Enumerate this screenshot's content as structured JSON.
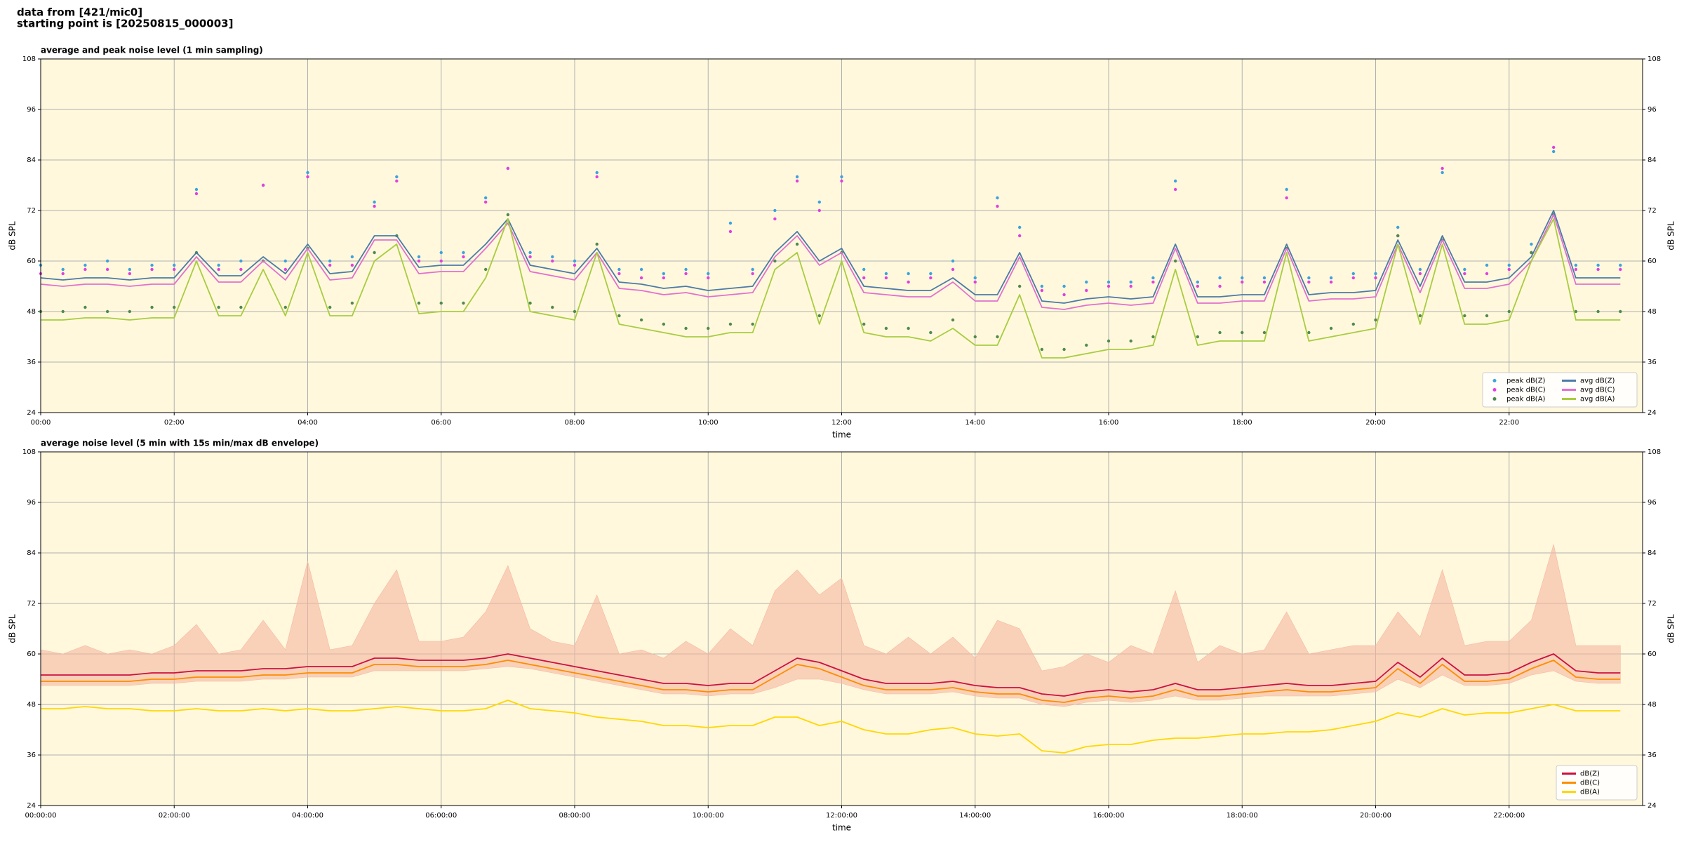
{
  "title": [
    "data from [421/mic0]",
    "starting point is [20250815_000003]"
  ],
  "chart_data": [
    {
      "type": "line",
      "title": "average and peak noise level (1 min sampling)",
      "xlabel": "time",
      "ylabel": "dB SPL",
      "facecolor": "#fff8dc",
      "grid": true,
      "right_axis_labels": true,
      "legend": "lower right",
      "legend_columns": 2,
      "xlim": [
        "00:00",
        "24:00"
      ],
      "xticks": [
        "00:00",
        "02:00",
        "04:00",
        "06:00",
        "08:00",
        "10:00",
        "12:00",
        "14:00",
        "16:00",
        "18:00",
        "20:00",
        "22:00"
      ],
      "ylim": [
        24,
        108
      ],
      "yticks": [
        24,
        36,
        48,
        60,
        72,
        84,
        96,
        108
      ],
      "x": [
        "00:00",
        "00:20",
        "00:40",
        "01:00",
        "01:20",
        "01:40",
        "02:00",
        "02:20",
        "02:40",
        "03:00",
        "03:20",
        "03:40",
        "04:00",
        "04:20",
        "04:40",
        "05:00",
        "05:20",
        "05:40",
        "06:00",
        "06:20",
        "06:40",
        "07:00",
        "07:20",
        "07:40",
        "08:00",
        "08:20",
        "08:40",
        "09:00",
        "09:20",
        "09:40",
        "10:00",
        "10:20",
        "10:40",
        "11:00",
        "11:20",
        "11:40",
        "12:00",
        "12:20",
        "12:40",
        "13:00",
        "13:20",
        "13:40",
        "14:00",
        "14:20",
        "14:40",
        "15:00",
        "15:20",
        "15:40",
        "16:00",
        "16:20",
        "16:40",
        "17:00",
        "17:20",
        "17:40",
        "18:00",
        "18:20",
        "18:40",
        "19:00",
        "19:20",
        "19:40",
        "20:00",
        "20:20",
        "20:40",
        "21:00",
        "21:20",
        "21:40",
        "22:00",
        "22:20",
        "22:40",
        "23:00",
        "23:20",
        "23:40"
      ],
      "series": [
        {
          "name": "peak dB(Z)",
          "type": "scatter",
          "color": "#3ba3e0",
          "values": [
            59,
            58,
            59,
            60,
            58,
            59,
            59,
            77,
            59,
            60,
            78,
            60,
            81,
            60,
            61,
            74,
            80,
            61,
            62,
            62,
            75,
            82,
            62,
            61,
            60,
            81,
            58,
            58,
            57,
            58,
            57,
            69,
            58,
            72,
            80,
            74,
            80,
            58,
            57,
            57,
            57,
            60,
            56,
            75,
            68,
            54,
            54,
            55,
            55,
            55,
            56,
            79,
            55,
            56,
            56,
            56,
            77,
            56,
            56,
            57,
            57,
            68,
            58,
            81,
            58,
            59,
            59,
            64,
            86,
            59,
            59,
            59
          ]
        },
        {
          "name": "peak dB(C)",
          "type": "scatter",
          "color": "#e040e0",
          "values": [
            57,
            57,
            58,
            58,
            57,
            58,
            58,
            76,
            58,
            58,
            78,
            58,
            80,
            59,
            59,
            73,
            79,
            60,
            60,
            61,
            74,
            82,
            61,
            60,
            59,
            80,
            57,
            56,
            56,
            57,
            56,
            67,
            57,
            70,
            79,
            72,
            79,
            56,
            56,
            55,
            56,
            58,
            55,
            73,
            66,
            53,
            52,
            53,
            54,
            54,
            55,
            77,
            54,
            54,
            55,
            55,
            75,
            55,
            55,
            56,
            56,
            66,
            57,
            82,
            57,
            57,
            58,
            62,
            87,
            58,
            58,
            58
          ]
        },
        {
          "name": "peak dB(A)",
          "type": "scatter",
          "color": "#4f8a4f",
          "values": [
            48,
            48,
            49,
            48,
            48,
            49,
            49,
            62,
            49,
            49,
            60,
            49,
            63,
            49,
            50,
            62,
            66,
            50,
            50,
            50,
            58,
            71,
            50,
            49,
            48,
            64,
            47,
            46,
            45,
            44,
            44,
            45,
            45,
            60,
            64,
            47,
            62,
            45,
            44,
            44,
            43,
            46,
            42,
            42,
            54,
            39,
            39,
            40,
            41,
            41,
            42,
            60,
            42,
            43,
            43,
            43,
            63,
            43,
            44,
            45,
            46,
            66,
            47,
            65,
            47,
            47,
            48,
            62,
            71,
            48,
            48,
            48
          ]
        },
        {
          "name": "avg dB(Z)",
          "type": "line",
          "color": "#4a7aa8",
          "values": [
            56,
            55.5,
            56,
            56,
            55.5,
            56,
            56,
            62,
            56.5,
            56.5,
            61,
            57,
            64,
            57,
            57.5,
            66,
            66,
            58.5,
            59,
            59,
            64,
            70,
            59,
            58,
            57,
            63,
            55,
            54.5,
            53.5,
            54,
            53,
            53.5,
            54,
            62,
            67,
            60,
            63,
            54,
            53.5,
            53,
            53,
            56,
            52,
            52,
            62,
            50.5,
            50,
            51,
            51.5,
            51,
            51.5,
            64,
            51.5,
            51.5,
            52,
            52,
            64,
            52,
            52.5,
            52.5,
            53,
            65,
            54,
            66,
            55,
            55,
            56,
            61,
            72,
            56,
            56,
            56
          ]
        },
        {
          "name": "avg dB(C)",
          "type": "line",
          "color": "#e070d0",
          "values": [
            54.5,
            54,
            54.5,
            54.5,
            54,
            54.5,
            54.5,
            61,
            55,
            55,
            60,
            55.5,
            63,
            55.5,
            56,
            65,
            65,
            57,
            57.5,
            57.5,
            63,
            69,
            57.5,
            56.5,
            55.5,
            62,
            53.5,
            53,
            52,
            52.5,
            51.5,
            52,
            52.5,
            61,
            66,
            59,
            62,
            52.5,
            52,
            51.5,
            51.5,
            55,
            50.5,
            50.5,
            61,
            49,
            48.5,
            49.5,
            50,
            49.5,
            50,
            63,
            50,
            50,
            50.5,
            50.5,
            63,
            50.5,
            51,
            51,
            51.5,
            64,
            52.5,
            65,
            53.5,
            53.5,
            54.5,
            60,
            71,
            54.5,
            54.5,
            54.5
          ]
        },
        {
          "name": "avg dB(A)",
          "type": "line",
          "color": "#a8cc40",
          "values": [
            46,
            46,
            46.5,
            46.5,
            46,
            46.5,
            46.5,
            60,
            47,
            47,
            58,
            47,
            62,
            47,
            47,
            60,
            64,
            47.5,
            48,
            48,
            56,
            70,
            48,
            47,
            46,
            62,
            45,
            44,
            43,
            42,
            42,
            43,
            43,
            58,
            62,
            45,
            60,
            43,
            42,
            42,
            41,
            44,
            40,
            40,
            52,
            37,
            37,
            38,
            39,
            39,
            40,
            58,
            40,
            41,
            41,
            41,
            62,
            41,
            42,
            43,
            44,
            64,
            45,
            64,
            45,
            45,
            46,
            60,
            70,
            46,
            46,
            46
          ]
        }
      ]
    },
    {
      "type": "line",
      "title": "average noise level (5 min with 15s min/max dB envelope)",
      "xlabel": "time",
      "ylabel": "dB SPL",
      "facecolor": "#fff8dc",
      "grid": true,
      "right_axis_labels": true,
      "legend": "lower right",
      "legend_columns": 1,
      "xlim": [
        "00:00:00",
        "24:00:00"
      ],
      "xticks": [
        "00:00:00",
        "02:00:00",
        "04:00:00",
        "06:00:00",
        "08:00:00",
        "10:00:00",
        "12:00:00",
        "14:00:00",
        "16:00:00",
        "18:00:00",
        "20:00:00",
        "22:00:00"
      ],
      "ylim": [
        24,
        108
      ],
      "yticks": [
        24,
        36,
        48,
        60,
        72,
        84,
        96,
        108
      ],
      "x": [
        "00:00:00",
        "00:20:00",
        "00:40:00",
        "01:00:00",
        "01:20:00",
        "01:40:00",
        "02:00:00",
        "02:20:00",
        "02:40:00",
        "03:00:00",
        "03:20:00",
        "03:40:00",
        "04:00:00",
        "04:20:00",
        "04:40:00",
        "05:00:00",
        "05:20:00",
        "05:40:00",
        "06:00:00",
        "06:20:00",
        "06:40:00",
        "07:00:00",
        "07:20:00",
        "07:40:00",
        "08:00:00",
        "08:20:00",
        "08:40:00",
        "09:00:00",
        "09:20:00",
        "09:40:00",
        "10:00:00",
        "10:20:00",
        "10:40:00",
        "11:00:00",
        "11:20:00",
        "11:40:00",
        "12:00:00",
        "12:20:00",
        "12:40:00",
        "13:00:00",
        "13:20:00",
        "13:40:00",
        "14:00:00",
        "14:20:00",
        "14:40:00",
        "15:00:00",
        "15:20:00",
        "15:40:00",
        "16:00:00",
        "16:20:00",
        "16:40:00",
        "17:00:00",
        "17:20:00",
        "17:40:00",
        "18:00:00",
        "18:20:00",
        "18:40:00",
        "19:00:00",
        "19:20:00",
        "19:40:00",
        "20:00:00",
        "20:20:00",
        "20:40:00",
        "21:00:00",
        "21:20:00",
        "21:40:00",
        "22:00:00",
        "22:20:00",
        "22:40:00",
        "23:00:00",
        "23:20:00",
        "23:40:00"
      ],
      "envelope": {
        "color": "#f5b8a0",
        "min": [
          52.5,
          52.5,
          52.5,
          52.5,
          52.5,
          53,
          53,
          53.5,
          53.5,
          53.5,
          54,
          54,
          54.5,
          54.5,
          54.5,
          56,
          56,
          56,
          56,
          56,
          56.5,
          57,
          56.5,
          55.5,
          54.5,
          53.5,
          52.5,
          51.5,
          50.5,
          50.5,
          50,
          50.5,
          50.5,
          52,
          54,
          54,
          53,
          51.5,
          50.5,
          50.5,
          50.5,
          51,
          50,
          49.5,
          49.5,
          48,
          47.5,
          48.5,
          49,
          48.5,
          49,
          50,
          49,
          49,
          49.5,
          50,
          50,
          50,
          50,
          50.5,
          51,
          54,
          52,
          55,
          52.5,
          52.5,
          53,
          55,
          56,
          53.5,
          53,
          53
        ],
        "max": [
          61,
          60,
          62,
          60,
          61,
          60,
          62,
          67,
          60,
          61,
          68,
          61,
          82,
          61,
          62,
          72,
          80,
          63,
          63,
          64,
          70,
          81,
          66,
          63,
          62,
          74,
          60,
          61,
          59,
          63,
          60,
          66,
          62,
          75,
          80,
          74,
          78,
          62,
          60,
          64,
          60,
          64,
          59,
          68,
          66,
          56,
          57,
          60,
          58,
          62,
          60,
          75,
          58,
          62,
          60,
          61,
          70,
          60,
          61,
          62,
          62,
          70,
          64,
          80,
          62,
          63,
          63,
          68,
          86,
          62,
          62,
          62
        ]
      },
      "series": [
        {
          "name": "dB(Z)",
          "type": "line",
          "color": "#cc1040",
          "values": [
            55,
            55,
            55,
            55,
            55,
            55.5,
            55.5,
            56,
            56,
            56,
            56.5,
            56.5,
            57,
            57,
            57,
            59,
            59,
            58.5,
            58.5,
            58.5,
            59,
            60,
            59,
            58,
            57,
            56,
            55,
            54,
            53,
            53,
            52.5,
            53,
            53,
            56,
            59,
            58,
            56,
            54,
            53,
            53,
            53,
            53.5,
            52.5,
            52,
            52,
            50.5,
            50,
            51,
            51.5,
            51,
            51.5,
            53,
            51.5,
            51.5,
            52,
            52.5,
            53,
            52.5,
            52.5,
            53,
            53.5,
            58,
            54.5,
            59,
            55,
            55,
            55.5,
            58,
            60,
            56,
            55.5,
            55.5
          ]
        },
        {
          "name": "dB(C)",
          "type": "line",
          "color": "#ff8c00",
          "values": [
            53.5,
            53.5,
            53.5,
            53.5,
            53.5,
            54,
            54,
            54.5,
            54.5,
            54.5,
            55,
            55,
            55.5,
            55.5,
            55.5,
            57.5,
            57.5,
            57,
            57,
            57,
            57.5,
            58.5,
            57.5,
            56.5,
            55.5,
            54.5,
            53.5,
            52.5,
            51.5,
            51.5,
            51,
            51.5,
            51.5,
            54.5,
            57.5,
            56.5,
            54.5,
            52.5,
            51.5,
            51.5,
            51.5,
            52,
            51,
            50.5,
            50.5,
            49,
            48.5,
            49.5,
            50,
            49.5,
            50,
            51.5,
            50,
            50,
            50.5,
            51,
            51.5,
            51,
            51,
            51.5,
            52,
            56.5,
            53,
            57.5,
            53.5,
            53.5,
            54,
            56.5,
            58.5,
            54.5,
            54,
            54
          ]
        },
        {
          "name": "dB(A)",
          "type": "line",
          "color": "#ffd700",
          "values": [
            47,
            47,
            47.5,
            47,
            47,
            46.5,
            46.5,
            47,
            46.5,
            46.5,
            47,
            46.5,
            47,
            46.5,
            46.5,
            47,
            47.5,
            47,
            46.5,
            46.5,
            47,
            49,
            47,
            46.5,
            46,
            45,
            44.5,
            44,
            43,
            43,
            42.5,
            43,
            43,
            45,
            45,
            43,
            44,
            42,
            41,
            41,
            42,
            42.5,
            41,
            40.5,
            41,
            37,
            36.5,
            38,
            38.5,
            38.5,
            39.5,
            40,
            40,
            40.5,
            41,
            41,
            41.5,
            41.5,
            42,
            43,
            44,
            46,
            45,
            47,
            45.5,
            46,
            46,
            47,
            48,
            46.5,
            46.5,
            46.5
          ]
        }
      ]
    }
  ]
}
